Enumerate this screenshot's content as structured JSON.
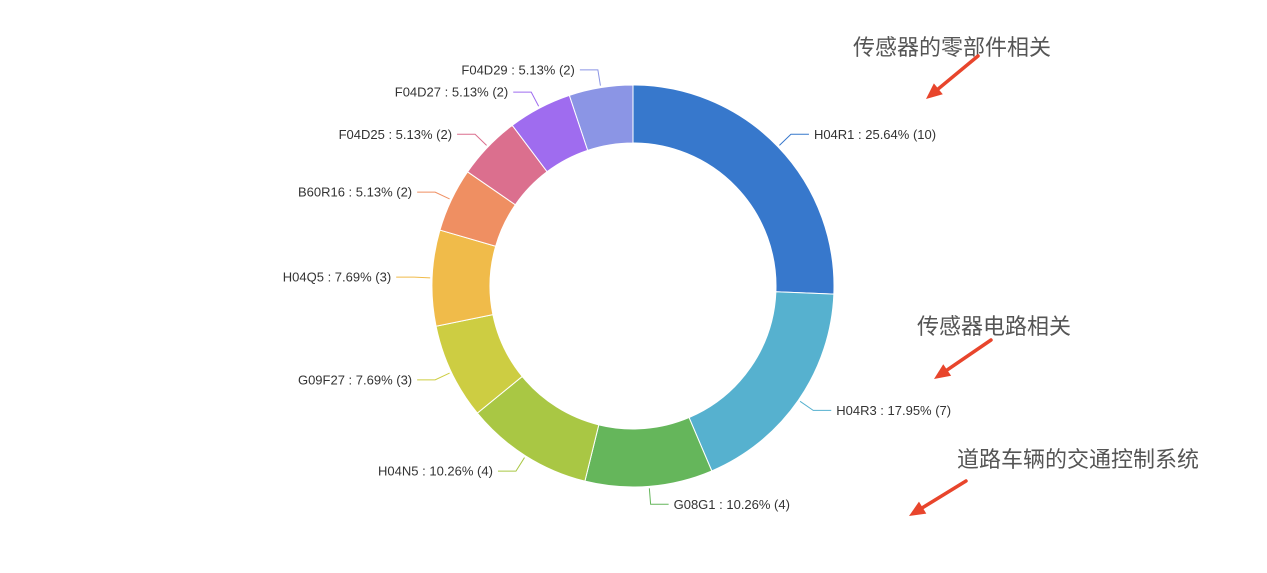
{
  "chart_data": {
    "type": "pie",
    "variant": "donut",
    "title": "",
    "categories": [
      "H04R1",
      "H04R3",
      "G08G1",
      "H04N5",
      "G09F27",
      "H04Q5",
      "B60R16",
      "F04D25",
      "F04D27",
      "F04D29"
    ],
    "values": [
      10,
      7,
      4,
      4,
      3,
      3,
      2,
      2,
      2,
      2
    ],
    "percents": [
      "25.64%",
      "17.95%",
      "10.26%",
      "10.26%",
      "7.69%",
      "7.69%",
      "5.13%",
      "5.13%",
      "5.13%",
      "5.13%"
    ],
    "labels": [
      "H04R1 : 25.64% (10)",
      "H04R3 : 17.95% (7)",
      "G08G1 : 10.26% (4)",
      "H04N5 : 10.26% (4)",
      "G09F27 : 7.69% (3)",
      "H04Q5 : 7.69% (3)",
      "B60R16 : 5.13% (2)",
      "F04D25 : 5.13% (2)",
      "F04D27 : 5.13% (2)",
      "F04D29 : 5.13% (2)"
    ],
    "colors": [
      "#3778cc",
      "#56b1cf",
      "#65b65b",
      "#a9c744",
      "#cdcd42",
      "#f0bb4a",
      "#ef8f62",
      "#db6f8e",
      "#9f6cef",
      "#8b95e5"
    ],
    "legend": "none"
  },
  "annotations": [
    {
      "text": "传感器的零部件相关"
    },
    {
      "text": "传感器电路相关"
    },
    {
      "text": "道路车辆的交通控制系统"
    }
  ],
  "arrow_color": "#e8452c"
}
